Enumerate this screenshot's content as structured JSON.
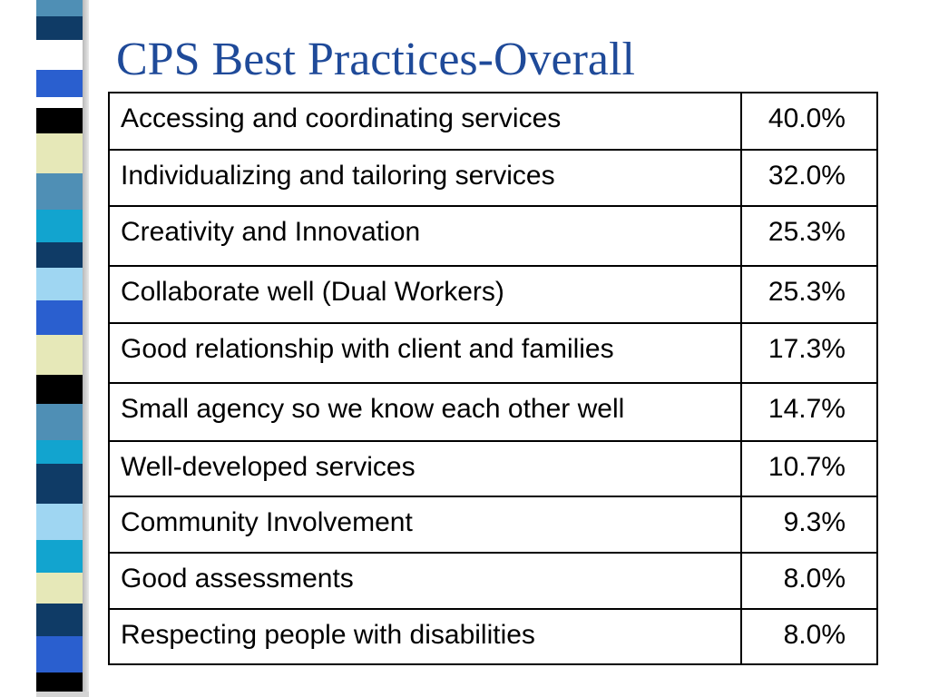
{
  "slide": {
    "title": "CPS Best Practices-Overall"
  },
  "colors": {
    "title": "#1f4a99",
    "stripe_palette": [
      "#0f3b66",
      "#4f8fb5",
      "#2a5fcf",
      "#000000",
      "#e6e8b8",
      "#12a4cf",
      "#9fd6f2",
      "#ffffff"
    ]
  },
  "table": {
    "rows": [
      {
        "label": "Accessing and coordinating services",
        "value": "40.0%"
      },
      {
        "label": "Individualizing and tailoring services",
        "value": "32.0%"
      },
      {
        "label": "Creativity and Innovation",
        "value": "25.3%"
      },
      {
        "label": "Collaborate well (Dual Workers)",
        "value": "25.3%"
      },
      {
        "label": "Good relationship with client and families",
        "value": "17.3%"
      },
      {
        "label": "Small agency so we know each other well",
        "value": "14.7%"
      },
      {
        "label": "Well-developed services",
        "value": "10.7%"
      },
      {
        "label": "Community Involvement",
        "value": "9.3%"
      },
      {
        "label": "Good assessments",
        "value": "8.0%"
      },
      {
        "label": "Respecting people with disabilities",
        "value": "8.0%"
      }
    ]
  }
}
